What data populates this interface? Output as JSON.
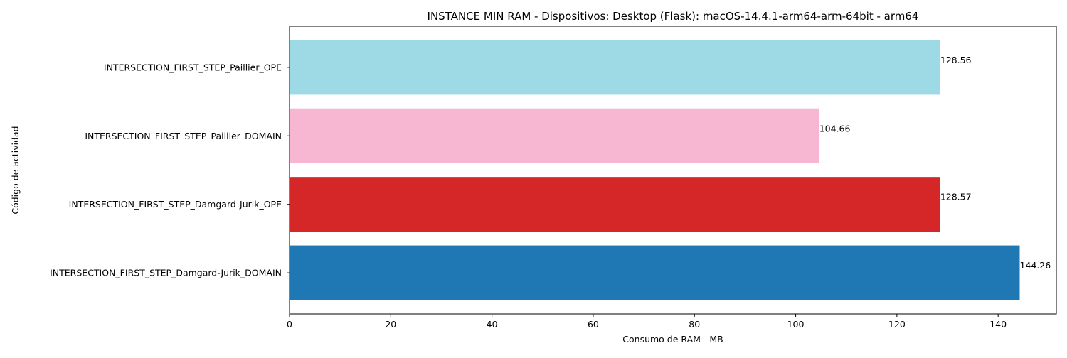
{
  "chart_data": {
    "type": "bar",
    "orientation": "horizontal",
    "title": "INSTANCE MIN RAM - Dispositivos: Desktop (Flask): macOS-14.4.1-arm64-arm-64bit - arm64",
    "xlabel": "Consumo de RAM - MB",
    "ylabel": "Código de actividad",
    "xlim": [
      0,
      151.5
    ],
    "xticks": [
      0,
      20,
      40,
      60,
      80,
      100,
      120,
      140
    ],
    "grid": false,
    "categories": [
      "INTERSECTION_FIRST_STEP_Damgard-Jurik_DOMAIN",
      "INTERSECTION_FIRST_STEP_Damgard-Jurik_OPE",
      "INTERSECTION_FIRST_STEP_Paillier_DOMAIN",
      "INTERSECTION_FIRST_STEP_Paillier_OPE"
    ],
    "values": [
      144.26,
      128.57,
      104.66,
      128.56
    ],
    "value_labels": [
      "144.26",
      "128.57",
      "104.66",
      "128.56"
    ],
    "colors": [
      "#1f77b4",
      "#d62728",
      "#f7b6d2",
      "#9edae5"
    ]
  }
}
